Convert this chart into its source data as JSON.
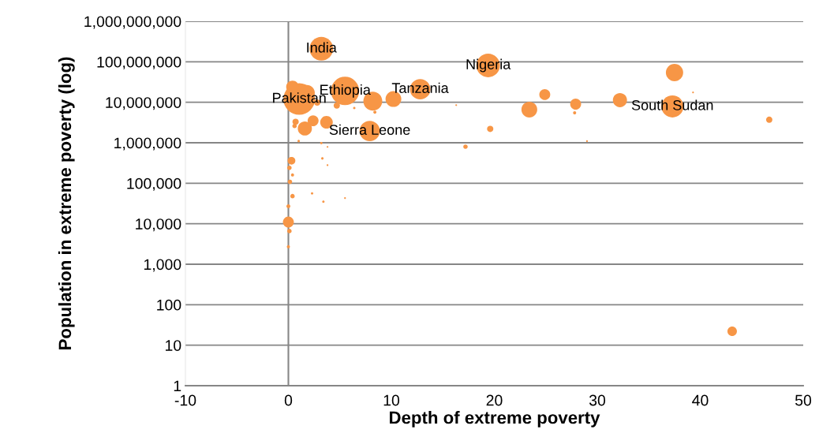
{
  "chart_data": {
    "type": "bubble",
    "xlabel": "Depth of extreme poverty",
    "ylabel": "Population in extreme poverty (log)",
    "x": [
      3.2,
      19.4,
      1.05,
      5.5,
      8.2,
      10.2,
      12.8,
      0.4,
      1.8,
      2.8,
      4.7,
      8.4,
      6.4,
      7.9,
      1.6,
      2.4,
      3.7,
      0.7,
      0.6,
      1.0,
      3.2,
      3.8,
      3.3,
      3.8,
      0.3,
      0.1,
      0.4,
      0.15,
      2.3,
      3.4,
      5.5,
      0.4,
      0.0,
      0.0,
      0.1,
      0.0,
      37.5,
      24.9,
      23.4,
      27.9,
      27.8,
      32.2,
      37.3,
      46.7,
      19.6,
      39.3,
      29.0,
      17.2,
      16.3,
      43.1
    ],
    "values": [
      210000000,
      81000000,
      12000000,
      19000000,
      10700000,
      12000000,
      21000000,
      24000000,
      17000000,
      9800000,
      8300000,
      5700000,
      7200000,
      1950000,
      2250000,
      3500000,
      3200000,
      3300000,
      2600000,
      1100000,
      980000,
      790000,
      410000,
      280000,
      360000,
      240000,
      160000,
      108000,
      56000,
      35000,
      43000,
      48000,
      27000,
      11000,
      6600,
      2700,
      54000000,
      15500000,
      6600000,
      9000000,
      5500000,
      11300000,
      7900000,
      3700000,
      2200000,
      17500000,
      1100000,
      800000,
      8500000,
      22
    ],
    "sizes": [
      0.56,
      0.56,
      1,
      0.81,
      0.36,
      0.25,
      0.42,
      0.16,
      0.25,
      0.04,
      0.04,
      0.01,
      0.006,
      0.42,
      0.2,
      0.12,
      0.16,
      0.04,
      0.02,
      0.006,
      0.006,
      0.003,
      0.006,
      0.003,
      0.06,
      0.02,
      0.01,
      0.02,
      0.006,
      0.006,
      0.003,
      0.02,
      0.015,
      0.12,
      0.02,
      0.01,
      0.3,
      0.12,
      0.25,
      0.12,
      0.01,
      0.2,
      0.49,
      0.04,
      0.04,
      0.003,
      0.003,
      0.02,
      0.003,
      0.09
    ],
    "color": "#f79646",
    "xlim": [
      -10,
      50
    ],
    "xticks": [
      -10,
      0,
      10,
      20,
      30,
      40,
      50
    ],
    "log": "y",
    "ylim": [
      1,
      1000000000
    ],
    "yticks": [
      {
        "value": 1,
        "label": "1"
      },
      {
        "value": 10,
        "label": "10"
      },
      {
        "value": 100,
        "label": "100"
      },
      {
        "value": 1000,
        "label": "1,000"
      },
      {
        "value": 10000,
        "label": "10,000"
      },
      {
        "value": 100000,
        "label": "100,000"
      },
      {
        "value": 1000000,
        "label": "1,000,000"
      },
      {
        "value": 10000000,
        "label": "10,000,000"
      },
      {
        "value": 100000000,
        "label": "100,000,000"
      },
      {
        "value": 1000000000,
        "label": "1,000,000,000"
      }
    ],
    "grid": "y",
    "ref_lines": [
      {
        "axis": "x",
        "value": 0,
        "color": "#868686"
      }
    ],
    "annotations": [
      {
        "text": "India",
        "x": 3.2,
        "y": 210000000
      },
      {
        "text": "Nigeria",
        "x": 19.4,
        "y": 81000000
      },
      {
        "text": "Ethiopia",
        "x": 5.5,
        "y": 19000000
      },
      {
        "text": "Tanzania",
        "x": 12.8,
        "y": 21000000
      },
      {
        "text": "Pakistan",
        "x": 1.05,
        "y": 12000000
      },
      {
        "text": "South Sudan",
        "x": 37.3,
        "y": 7900000
      },
      {
        "text": "Sierra Leone",
        "x": 7.9,
        "y": 1950000
      }
    ]
  }
}
